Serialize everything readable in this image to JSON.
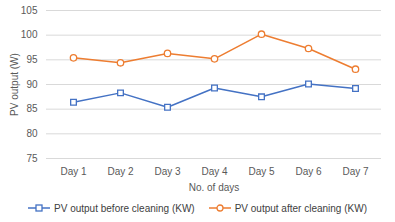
{
  "chart_data": {
    "type": "line",
    "x_label": "No. of days",
    "y_label": "PV output (W)",
    "categories": [
      "Day 1",
      "Day 2",
      "Day 3",
      "Day 4",
      "Day 5",
      "Day 6",
      "Day 7"
    ],
    "series": [
      {
        "name": "PV output before cleaning (KW)",
        "color": "#4472c4",
        "marker": "square",
        "line_style": "solid",
        "values": [
          86.4,
          88.3,
          85.4,
          89.3,
          87.5,
          90.1,
          89.2
        ]
      },
      {
        "name": "PV output after cleaning (KW)",
        "color": "#ed7d31",
        "marker": "circle",
        "line_style": "solid",
        "values": [
          95.4,
          94.4,
          96.3,
          95.2,
          100.2,
          97.3,
          93.1
        ]
      }
    ],
    "ylim": [
      75,
      105
    ],
    "yticks": [
      75,
      80,
      85,
      90,
      95,
      100,
      105
    ],
    "grid": true,
    "legend": "bottom"
  }
}
